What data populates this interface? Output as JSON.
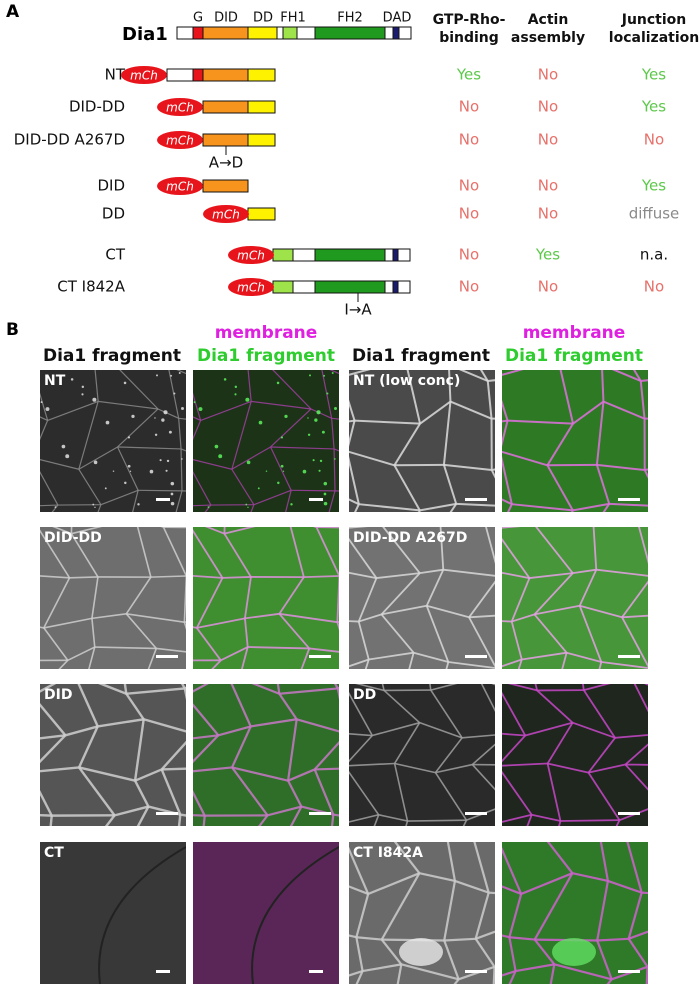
{
  "panel_a": {
    "label": "A",
    "protein": "Dia1",
    "tag": "mCh",
    "domains": [
      "G",
      "DID",
      "DD",
      "FH1",
      "FH2",
      "DAD"
    ],
    "columns": [
      [
        "GTP-Rho-",
        "binding"
      ],
      [
        "Actin",
        "assembly"
      ],
      [
        "Junction",
        "localization"
      ]
    ],
    "constructs": [
      {
        "name": "NT",
        "gtp": "Yes",
        "actin": "No",
        "junction": "Yes"
      },
      {
        "name": "DID-DD",
        "gtp": "No",
        "actin": "No",
        "junction": "Yes"
      },
      {
        "name": "DID-DD A267D",
        "gtp": "No",
        "actin": "No",
        "junction": "No",
        "mutation": "A→D"
      },
      {
        "name": "DID",
        "gtp": "No",
        "actin": "No",
        "junction": "Yes"
      },
      {
        "name": "DD",
        "gtp": "No",
        "actin": "No",
        "junction": "diffuse"
      },
      {
        "name": "CT",
        "gtp": "No",
        "actin": "Yes",
        "junction": "n.a."
      },
      {
        "name": "CT I842A",
        "gtp": "No",
        "actin": "No",
        "junction": "No",
        "mutation": "I→A"
      }
    ]
  },
  "panel_b": {
    "label": "B",
    "gray_header": "Dia1 fragment",
    "merge_header": [
      "membrane",
      "Dia1 fragment"
    ],
    "images": [
      [
        "NT",
        "NT (low conc)"
      ],
      [
        "DID-DD",
        "DID-DD A267D"
      ],
      [
        "DID",
        "DD"
      ],
      [
        "CT",
        "CT I842A"
      ]
    ]
  }
}
